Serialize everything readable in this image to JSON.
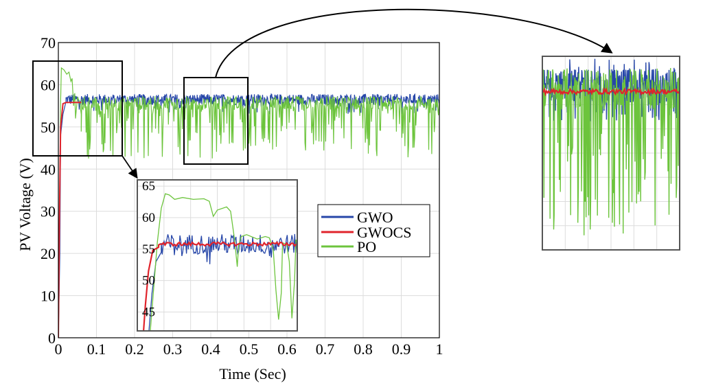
{
  "chart_data": [
    {
      "type": "line",
      "xlabel": "Time (Sec)",
      "ylabel": "PV Voltage (V)",
      "xlim": [
        0,
        1
      ],
      "ylim": [
        0,
        70
      ],
      "xticks": [
        "0",
        "0.1",
        "0.2",
        "0.3",
        "0.4",
        "0.5",
        "0.6",
        "0.7",
        "0.8",
        "0.9",
        "1"
      ],
      "yticks": [
        "0",
        "10",
        "20",
        "30",
        "40",
        "50",
        "60",
        "70"
      ],
      "grid": true,
      "legend_position": "center-right",
      "series": [
        {
          "name": "GWO",
          "color": "#2646a8",
          "description_points": {
            "x": [
              0,
              0.005,
              0.02,
              0.06,
              1.0
            ],
            "y": [
              0,
              50,
              56,
              56.5,
              56.5
            ]
          },
          "steady_state_band": [
            53,
            58.5
          ]
        },
        {
          "name": "GWOCS",
          "color": "#e0232b",
          "description_points": {
            "x": [
              0,
              0.005,
              0.015,
              1.0
            ],
            "y": [
              0,
              50,
              55.8,
              55.8
            ]
          }
        },
        {
          "name": "PO",
          "color": "#6cc43c",
          "description_points": {
            "x": [
              0,
              0.003,
              0.008,
              0.03,
              0.04,
              0.05,
              0.06,
              1.0
            ],
            "y": [
              0,
              40,
              63.5,
              62,
              58,
              57,
              50,
              57
            ]
          },
          "steady_state_band": [
            42,
            57.5
          ]
        }
      ]
    },
    {
      "type": "line",
      "title": "inset-zoom-start",
      "xlim": [
        0,
        0.06
      ],
      "ylim": [
        42,
        66
      ],
      "yticks": [
        "45",
        "50",
        "55",
        "60",
        "65"
      ],
      "grid": true
    },
    {
      "type": "line",
      "title": "inset-zoom-steady",
      "xlim": [
        0.33,
        0.49
      ],
      "ylim": [
        41,
        61
      ],
      "grid": true
    }
  ]
}
